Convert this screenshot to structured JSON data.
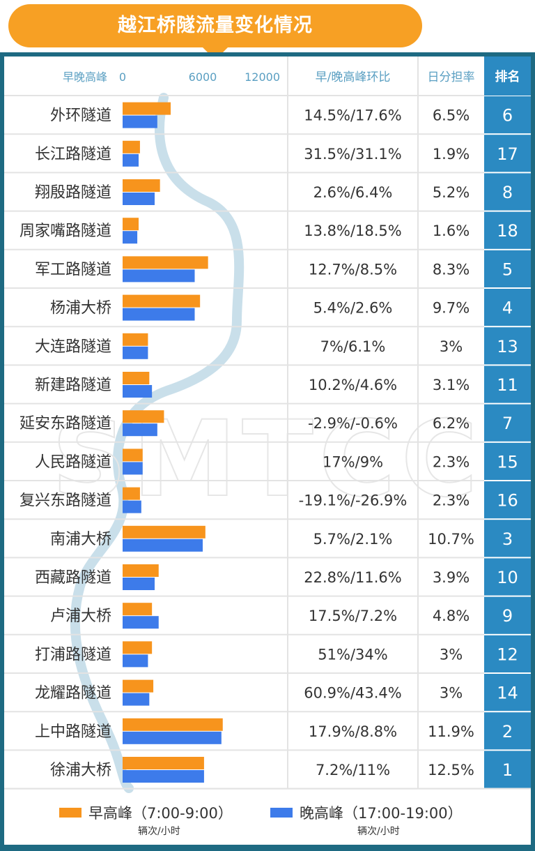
{
  "title": "越江桥隧流量变化情况",
  "watermark": "SMTCC",
  "headers": {
    "bars": "早晚高峰",
    "ratio": "早/晚高峰环比",
    "share": "日分担率",
    "rank": "排名"
  },
  "colors": {
    "morning": "#f7941d",
    "evening": "#3d7bea",
    "rank_bg": "#2b8ac2",
    "frame": "#1e6a82",
    "title_bg": "#f7a024"
  },
  "legend": {
    "morning": {
      "name": "早高峰（7:00-9:00）",
      "unit": "辆次/小时"
    },
    "evening": {
      "name": "晚高峰（17:00-19:00）",
      "unit": "辆次/小时"
    }
  },
  "chart_data": {
    "type": "bar",
    "orientation": "horizontal",
    "xticks": [
      "0",
      "6000",
      "12000"
    ],
    "xlim": [
      0,
      12000
    ],
    "categories": [
      "外环隧道",
      "长江路隧道",
      "翔殷路隧道",
      "周家嘴路隧道",
      "军工路隧道",
      "杨浦大桥",
      "大连路隧道",
      "新建路隧道",
      "延安东路隧道",
      "人民路隧道",
      "复兴东路隧道",
      "南浦大桥",
      "西藏路隧道",
      "卢浦大桥",
      "打浦路隧道",
      "龙耀路隧道",
      "上中路隧道",
      "徐浦大桥"
    ],
    "series": [
      {
        "name": "早高峰（7:00-9:00）",
        "values": [
          3600,
          1300,
          2800,
          1200,
          6400,
          5800,
          1900,
          2000,
          3100,
          1500,
          1300,
          6200,
          2700,
          2200,
          2200,
          2300,
          7500,
          6100
        ]
      },
      {
        "name": "晚高峰（17:00-19:00）",
        "values": [
          2600,
          1200,
          2400,
          1100,
          5400,
          5400,
          1900,
          2200,
          2600,
          1500,
          1400,
          6000,
          2400,
          2700,
          1900,
          2000,
          7400,
          6100
        ]
      }
    ],
    "ratios": [
      "14.5%/17.6%",
      "31.5%/31.1%",
      "2.6%/6.4%",
      "13.8%/18.5%",
      "12.7%/8.5%",
      "5.4%/2.6%",
      "7%/6.1%",
      "10.2%/4.6%",
      "-2.9%/-0.6%",
      "17%/9%",
      "-19.1%/-26.9%",
      "5.7%/2.1%",
      "22.8%/11.6%",
      "17.5%/7.2%",
      "51%/34%",
      "60.9%/43.4%",
      "17.9%/8.8%",
      "7.2%/11%"
    ],
    "shares": [
      "6.5%",
      "1.9%",
      "5.2%",
      "1.6%",
      "8.3%",
      "9.7%",
      "3%",
      "3.1%",
      "6.2%",
      "2.3%",
      "2.3%",
      "10.7%",
      "3.9%",
      "4.8%",
      "3%",
      "3%",
      "11.9%",
      "12.5%"
    ],
    "ranks": [
      "6",
      "17",
      "8",
      "18",
      "5",
      "4",
      "13",
      "11",
      "7",
      "15",
      "16",
      "3",
      "10",
      "9",
      "12",
      "14",
      "2",
      "1"
    ]
  }
}
